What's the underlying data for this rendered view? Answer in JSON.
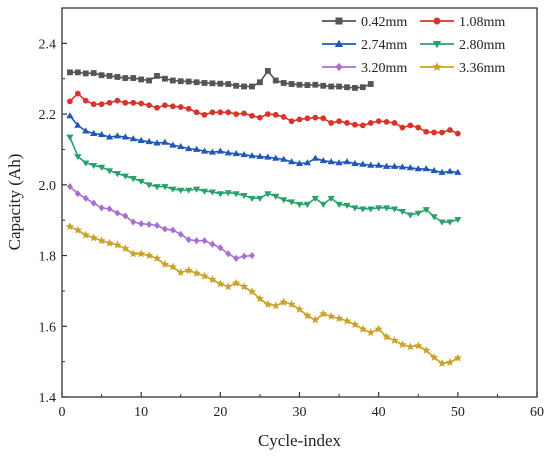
{
  "chart_data": {
    "type": "line",
    "xlabel": "Cycle-index",
    "ylabel": "Capacity (Ah)",
    "xlim": [
      0,
      60
    ],
    "ylim": [
      1.4,
      2.5
    ],
    "xticks": [
      0,
      10,
      20,
      30,
      40,
      50,
      60
    ],
    "yticks": [
      1.4,
      1.6,
      1.8,
      2.0,
      2.2,
      2.4
    ],
    "grid": false,
    "legend_position": "top-right",
    "series": [
      {
        "name": "0.42mm",
        "color": "#555555",
        "marker": "square",
        "x": [
          1,
          2,
          3,
          4,
          5,
          6,
          7,
          8,
          9,
          10,
          11,
          12,
          13,
          14,
          15,
          16,
          17,
          18,
          19,
          20,
          21,
          22,
          23,
          24,
          25,
          26,
          27,
          28,
          29,
          30,
          31,
          32,
          33,
          34,
          35,
          36,
          37,
          38,
          39
        ],
        "y": [
          2.318,
          2.318,
          2.315,
          2.316,
          2.31,
          2.308,
          2.305,
          2.302,
          2.302,
          2.298,
          2.295,
          2.308,
          2.3,
          2.295,
          2.293,
          2.292,
          2.29,
          2.288,
          2.287,
          2.286,
          2.285,
          2.28,
          2.278,
          2.278,
          2.29,
          2.322,
          2.295,
          2.288,
          2.285,
          2.283,
          2.282,
          2.283,
          2.28,
          2.278,
          2.278,
          2.276,
          2.274,
          2.276,
          2.285
        ]
      },
      {
        "name": "1.08mm",
        "color": "#d9342b",
        "marker": "circle",
        "x": [
          1,
          2,
          3,
          4,
          5,
          6,
          7,
          8,
          9,
          10,
          11,
          12,
          13,
          14,
          15,
          16,
          17,
          18,
          19,
          20,
          21,
          22,
          23,
          24,
          25,
          26,
          27,
          28,
          29,
          30,
          31,
          32,
          33,
          34,
          35,
          36,
          37,
          38,
          39,
          40,
          41,
          42,
          43,
          44,
          45,
          46,
          47,
          48,
          49,
          50
        ],
        "y": [
          2.236,
          2.258,
          2.238,
          2.228,
          2.228,
          2.232,
          2.238,
          2.232,
          2.232,
          2.23,
          2.225,
          2.218,
          2.225,
          2.222,
          2.22,
          2.215,
          2.205,
          2.198,
          2.205,
          2.205,
          2.205,
          2.2,
          2.202,
          2.195,
          2.19,
          2.2,
          2.198,
          2.192,
          2.18,
          2.185,
          2.188,
          2.19,
          2.188,
          2.175,
          2.18,
          2.175,
          2.17,
          2.168,
          2.175,
          2.18,
          2.178,
          2.175,
          2.162,
          2.168,
          2.162,
          2.15,
          2.148,
          2.148,
          2.155,
          2.145
        ]
      },
      {
        "name": "2.74mm",
        "color": "#2058b8",
        "marker": "triangle",
        "x": [
          1,
          2,
          3,
          4,
          5,
          6,
          7,
          8,
          9,
          10,
          11,
          12,
          13,
          14,
          15,
          16,
          17,
          18,
          19,
          20,
          21,
          22,
          23,
          24,
          25,
          26,
          27,
          28,
          29,
          30,
          31,
          32,
          33,
          34,
          35,
          36,
          37,
          38,
          39,
          40,
          41,
          42,
          43,
          44,
          45,
          46,
          47,
          48,
          49,
          50
        ],
        "y": [
          2.195,
          2.168,
          2.152,
          2.145,
          2.142,
          2.135,
          2.138,
          2.135,
          2.13,
          2.125,
          2.122,
          2.118,
          2.12,
          2.112,
          2.108,
          2.102,
          2.1,
          2.095,
          2.092,
          2.095,
          2.09,
          2.088,
          2.085,
          2.082,
          2.08,
          2.078,
          2.075,
          2.072,
          2.065,
          2.06,
          2.062,
          2.075,
          2.068,
          2.065,
          2.062,
          2.065,
          2.06,
          2.058,
          2.055,
          2.055,
          2.052,
          2.052,
          2.05,
          2.048,
          2.045,
          2.045,
          2.04,
          2.035,
          2.038,
          2.035
        ]
      },
      {
        "name": "2.80mm",
        "color": "#2aa06b",
        "marker": "triangle-down",
        "x": [
          1,
          2,
          3,
          4,
          5,
          6,
          7,
          8,
          9,
          10,
          11,
          12,
          13,
          14,
          15,
          16,
          17,
          18,
          19,
          20,
          21,
          22,
          23,
          24,
          25,
          26,
          27,
          28,
          29,
          30,
          31,
          32,
          33,
          34,
          35,
          36,
          37,
          38,
          39,
          40,
          41,
          42,
          43,
          44,
          45,
          46,
          47,
          48,
          49,
          50
        ],
        "y": [
          2.135,
          2.08,
          2.062,
          2.055,
          2.05,
          2.04,
          2.032,
          2.025,
          2.018,
          2.01,
          2.0,
          1.995,
          1.995,
          1.988,
          1.985,
          1.985,
          1.988,
          1.982,
          1.98,
          1.975,
          1.978,
          1.975,
          1.97,
          1.962,
          1.962,
          1.975,
          1.968,
          1.958,
          1.952,
          1.945,
          1.945,
          1.962,
          1.945,
          1.962,
          1.945,
          1.942,
          1.935,
          1.932,
          1.932,
          1.935,
          1.935,
          1.932,
          1.925,
          1.915,
          1.92,
          1.93,
          1.91,
          1.895,
          1.895,
          1.902
        ]
      },
      {
        "name": "3.20mm",
        "color": "#a86fd0",
        "marker": "diamond",
        "x": [
          1,
          2,
          3,
          4,
          5,
          6,
          7,
          8,
          9,
          10,
          11,
          12,
          13,
          14,
          15,
          16,
          17,
          18,
          19,
          20,
          21,
          22,
          23,
          24
        ],
        "y": [
          1.995,
          1.975,
          1.962,
          1.948,
          1.935,
          1.932,
          1.92,
          1.912,
          1.895,
          1.89,
          1.888,
          1.885,
          1.875,
          1.872,
          1.86,
          1.845,
          1.842,
          1.842,
          1.832,
          1.822,
          1.805,
          1.792,
          1.798,
          1.8
        ]
      },
      {
        "name": "3.36mm",
        "color": "#c9a227",
        "marker": "star",
        "x": [
          1,
          2,
          3,
          4,
          5,
          6,
          7,
          8,
          9,
          10,
          11,
          12,
          13,
          14,
          15,
          16,
          17,
          18,
          19,
          20,
          21,
          22,
          23,
          24,
          25,
          26,
          27,
          28,
          29,
          30,
          31,
          32,
          33,
          34,
          35,
          36,
          37,
          38,
          39,
          40,
          41,
          42,
          43,
          44,
          45,
          46,
          47,
          48,
          49,
          50
        ],
        "y": [
          1.882,
          1.872,
          1.858,
          1.85,
          1.842,
          1.835,
          1.83,
          1.82,
          1.805,
          1.805,
          1.8,
          1.792,
          1.775,
          1.768,
          1.752,
          1.758,
          1.75,
          1.742,
          1.732,
          1.72,
          1.712,
          1.722,
          1.712,
          1.698,
          1.678,
          1.662,
          1.658,
          1.668,
          1.662,
          1.648,
          1.63,
          1.618,
          1.635,
          1.628,
          1.622,
          1.615,
          1.605,
          1.592,
          1.582,
          1.592,
          1.57,
          1.56,
          1.548,
          1.542,
          1.545,
          1.532,
          1.512,
          1.495,
          1.498,
          1.51
        ]
      }
    ]
  }
}
